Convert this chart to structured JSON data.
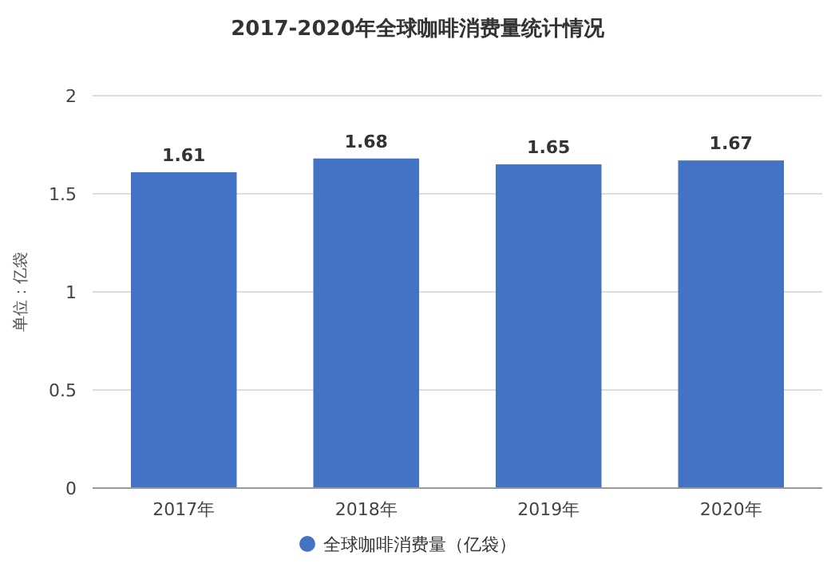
{
  "chart_data": {
    "type": "bar",
    "title": "2017-2020年全球咖啡消费量统计情况",
    "ylabel": "单位：亿袋",
    "categories": [
      "2017年",
      "2018年",
      "2019年",
      "2020年"
    ],
    "series": [
      {
        "name": "全球咖啡消费量（亿袋）",
        "color": "#4472c4",
        "values": [
          1.61,
          1.68,
          1.65,
          1.67
        ]
      }
    ],
    "ylim": [
      0,
      2
    ],
    "yticks": [
      0,
      0.5,
      1,
      1.5,
      2
    ],
    "grid": "y",
    "legend": "bottom",
    "data_labels": true
  }
}
